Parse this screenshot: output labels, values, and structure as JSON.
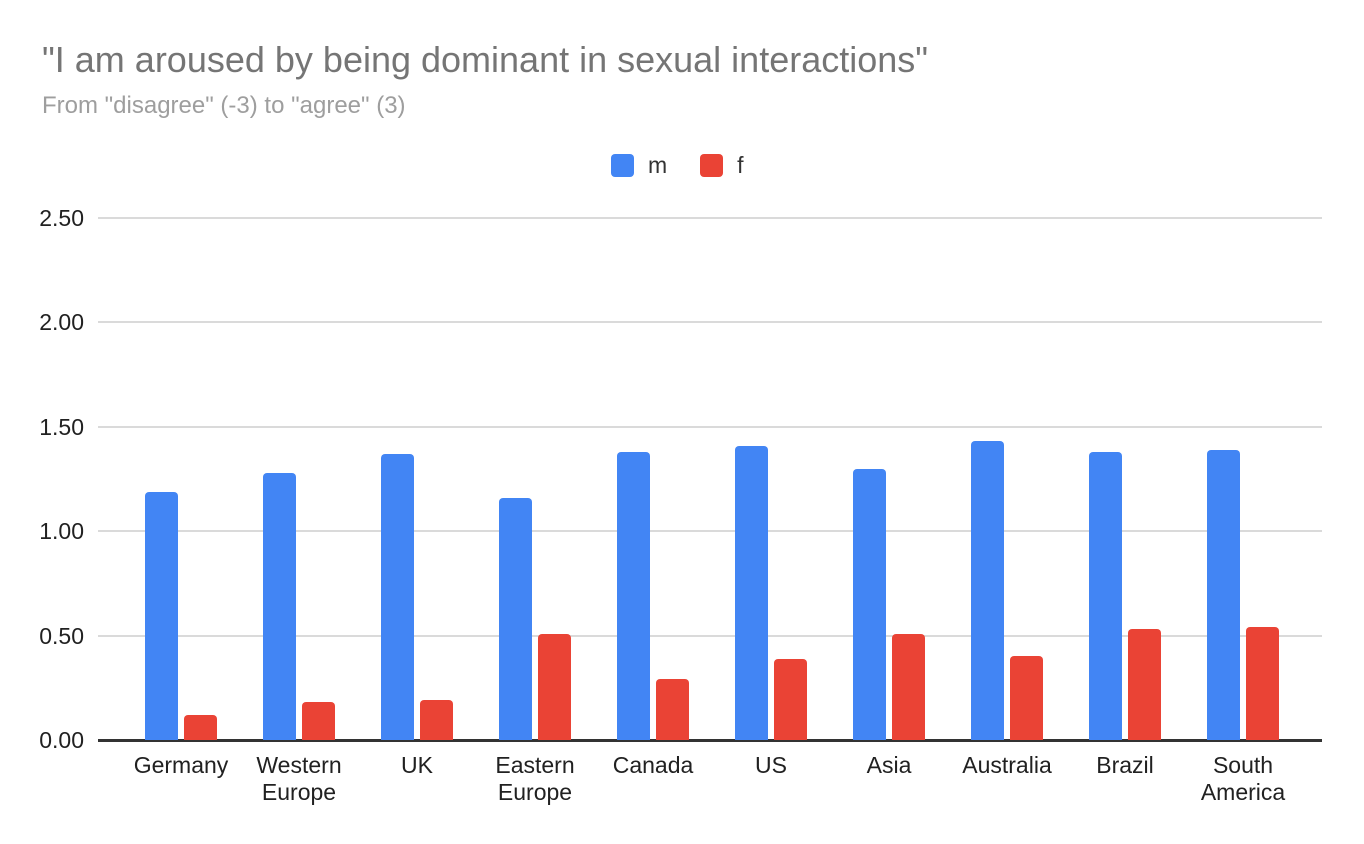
{
  "chart_data": {
    "type": "bar",
    "title": "\"I am aroused by being dominant in sexual interactions\"",
    "subtitle": "From \"disagree\" (-3) to \"agree\" (3)",
    "categories": [
      "Germany",
      "Western Europe",
      "UK",
      "Eastern Europe",
      "Canada",
      "US",
      "Asia",
      "Australia",
      "Brazil",
      "South America"
    ],
    "series": [
      {
        "name": "m",
        "color": "#4285F4",
        "values": [
          1.19,
          1.28,
          1.37,
          1.16,
          1.38,
          1.41,
          1.3,
          1.43,
          1.38,
          1.39
        ]
      },
      {
        "name": "f",
        "color": "#EA4335",
        "values": [
          0.12,
          0.18,
          0.19,
          0.51,
          0.29,
          0.39,
          0.51,
          0.4,
          0.53,
          0.54
        ]
      }
    ],
    "ylim": [
      0,
      2.5
    ],
    "ytick_step": 0.5,
    "ytick_labels": [
      "0.00",
      "0.50",
      "1.00",
      "1.50",
      "2.00",
      "2.50"
    ],
    "grid": true,
    "legend_position": "top-center",
    "xlabel": "",
    "ylabel": ""
  },
  "colors": {
    "background": "#ffffff",
    "title": "#757575",
    "subtitle": "#9e9e9e",
    "gridline": "#dadada",
    "axis_line": "#333333",
    "tick_label": "#212121",
    "series_m": "#4285F4",
    "series_f": "#EA4335"
  }
}
